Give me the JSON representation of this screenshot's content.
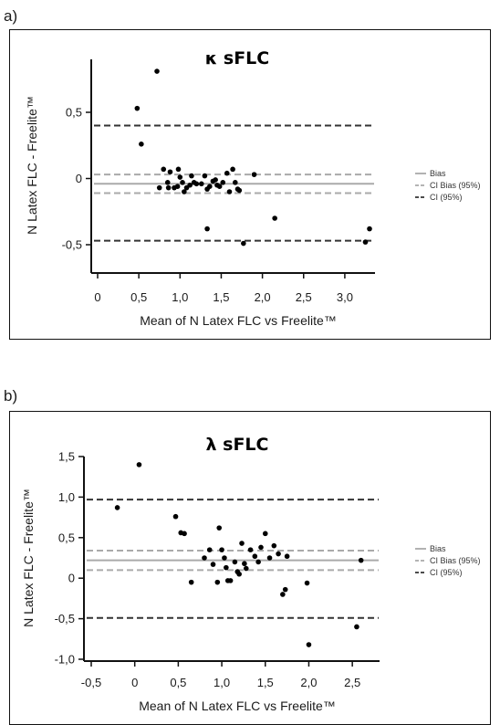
{
  "panel_a_label": "a)",
  "panel_b_label": "b)",
  "chart_data": [
    {
      "type": "scatter",
      "title": "κ sFLC",
      "xlabel": "Mean of N Latex FLC vs Freelite™",
      "ylabel": "N Latex FLC - Freelite™",
      "xlim": [
        0,
        3.3
      ],
      "ylim": [
        -0.7,
        0.9
      ],
      "xticks": [
        0,
        0.5,
        1.0,
        1.5,
        2.0,
        2.5,
        3.0
      ],
      "xtick_labels": [
        "0",
        "0,5",
        "1,0",
        "1,5",
        "2,0",
        "2,5",
        "3,0"
      ],
      "yticks": [
        -0.5,
        0,
        0.5
      ],
      "ytick_labels": [
        "-0,5",
        "0",
        "0,5"
      ],
      "reference_lines": [
        {
          "name": "Bias",
          "y": -0.04,
          "style": "solid",
          "color": "#aaaaaa"
        },
        {
          "name": "CI Bias (95%)",
          "y": 0.03,
          "style": "dashed",
          "color": "#aaaaaa"
        },
        {
          "name": "CI Bias (95%)",
          "y": -0.11,
          "style": "dashed",
          "color": "#aaaaaa"
        },
        {
          "name": "CI (95%)",
          "y": 0.4,
          "style": "dashed",
          "color": "#333333"
        },
        {
          "name": "CI (95%)",
          "y": -0.47,
          "style": "dashed",
          "color": "#333333"
        }
      ],
      "legend": [
        "Bias",
        "CI Bias (95%)",
        "CI (95%)"
      ],
      "legend_position": "right",
      "points": [
        [
          0.72,
          0.81
        ],
        [
          0.48,
          0.53
        ],
        [
          0.53,
          0.26
        ],
        [
          0.8,
          0.07
        ],
        [
          0.88,
          0.05
        ],
        [
          0.98,
          0.07
        ],
        [
          1.0,
          0.01
        ],
        [
          0.85,
          -0.03
        ],
        [
          0.75,
          -0.07
        ],
        [
          0.86,
          -0.07
        ],
        [
          0.93,
          -0.07
        ],
        [
          0.97,
          -0.06
        ],
        [
          1.03,
          -0.03
        ],
        [
          1.05,
          -0.1
        ],
        [
          1.08,
          -0.07
        ],
        [
          1.12,
          -0.05
        ],
        [
          1.14,
          0.02
        ],
        [
          1.17,
          -0.03
        ],
        [
          1.2,
          -0.04
        ],
        [
          1.26,
          -0.04
        ],
        [
          1.3,
          0.02
        ],
        [
          1.33,
          -0.08
        ],
        [
          1.36,
          -0.06
        ],
        [
          1.4,
          -0.02
        ],
        [
          1.43,
          -0.01
        ],
        [
          1.45,
          -0.05
        ],
        [
          1.48,
          -0.06
        ],
        [
          1.52,
          -0.03
        ],
        [
          1.57,
          0.04
        ],
        [
          1.6,
          -0.1
        ],
        [
          1.64,
          0.07
        ],
        [
          1.67,
          -0.03
        ],
        [
          1.7,
          -0.08
        ],
        [
          1.72,
          -0.09
        ],
        [
          1.9,
          0.03
        ],
        [
          1.33,
          -0.38
        ],
        [
          1.77,
          -0.49
        ],
        [
          2.15,
          -0.3
        ],
        [
          3.25,
          -0.48
        ],
        [
          3.3,
          -0.38
        ]
      ]
    },
    {
      "type": "scatter",
      "title": "λ sFLC",
      "xlabel": "Mean of N Latex FLC vs Freelite™",
      "ylabel": "N Latex FLC - Freelite™",
      "xlim": [
        -0.5,
        2.75
      ],
      "ylim": [
        -1.0,
        1.5
      ],
      "xticks": [
        -0.5,
        0,
        0.5,
        1.0,
        1.5,
        2.0,
        2.5
      ],
      "xtick_labels": [
        "-0,5",
        "0",
        "0,5",
        "1,0",
        "1,5",
        "2,0",
        "2,5"
      ],
      "yticks": [
        -1.0,
        -0.5,
        0,
        0.5,
        1.0,
        1.5
      ],
      "ytick_labels": [
        "-1,0",
        "-0,5",
        "0",
        "0,5",
        "1,0",
        "1,5"
      ],
      "reference_lines": [
        {
          "name": "Bias",
          "y": 0.22,
          "style": "solid",
          "color": "#aaaaaa"
        },
        {
          "name": "CI Bias (95%)",
          "y": 0.34,
          "style": "dashed",
          "color": "#aaaaaa"
        },
        {
          "name": "CI Bias (95%)",
          "y": 0.1,
          "style": "dashed",
          "color": "#aaaaaa"
        },
        {
          "name": "CI (95%)",
          "y": 0.97,
          "style": "dashed",
          "color": "#333333"
        },
        {
          "name": "CI (95%)",
          "y": -0.49,
          "style": "dashed",
          "color": "#333333"
        }
      ],
      "legend": [
        "Bias",
        "CI Bias (95%)",
        "CI (95%)"
      ],
      "legend_position": "right",
      "points": [
        [
          -0.2,
          0.87
        ],
        [
          0.05,
          1.4
        ],
        [
          0.47,
          0.76
        ],
        [
          0.53,
          0.56
        ],
        [
          0.57,
          0.55
        ],
        [
          0.65,
          -0.05
        ],
        [
          0.8,
          0.25
        ],
        [
          0.86,
          0.35
        ],
        [
          0.9,
          0.17
        ],
        [
          0.95,
          -0.05
        ],
        [
          0.97,
          0.62
        ],
        [
          1.0,
          0.35
        ],
        [
          1.03,
          0.25
        ],
        [
          1.05,
          0.13
        ],
        [
          1.07,
          -0.03
        ],
        [
          1.1,
          -0.03
        ],
        [
          1.15,
          0.2
        ],
        [
          1.18,
          0.08
        ],
        [
          1.2,
          0.05
        ],
        [
          1.23,
          0.43
        ],
        [
          1.26,
          0.18
        ],
        [
          1.28,
          0.12
        ],
        [
          1.33,
          0.35
        ],
        [
          1.38,
          0.27
        ],
        [
          1.42,
          0.2
        ],
        [
          1.45,
          0.38
        ],
        [
          1.5,
          0.55
        ],
        [
          1.55,
          0.25
        ],
        [
          1.6,
          0.4
        ],
        [
          1.65,
          0.3
        ],
        [
          1.7,
          -0.2
        ],
        [
          1.75,
          0.27
        ],
        [
          1.73,
          -0.14
        ],
        [
          1.98,
          -0.06
        ],
        [
          2.0,
          -0.82
        ],
        [
          2.55,
          -0.6
        ],
        [
          2.6,
          0.22
        ]
      ]
    }
  ]
}
